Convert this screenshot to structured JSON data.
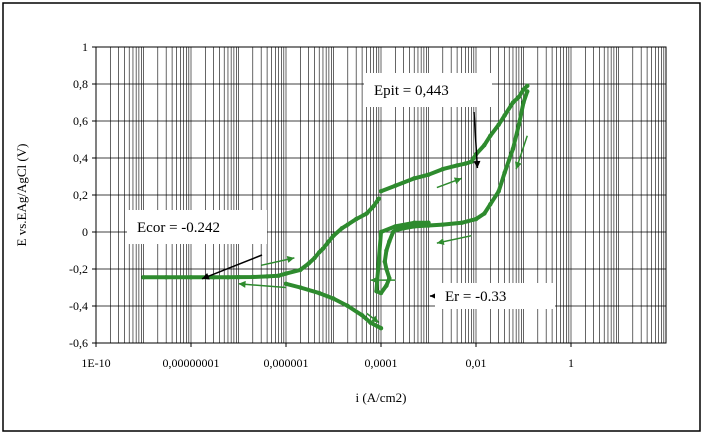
{
  "chart_data": {
    "type": "scatter",
    "title": "",
    "xlabel": "i (A/cm2)",
    "ylabel": "E vs.EAg/AgCl (V)",
    "x_scale": "log",
    "xlim": [
      1e-10,
      100
    ],
    "ylim": [
      -0.6,
      1
    ],
    "x_ticks": [
      {
        "value": 1e-10,
        "label": "1E-10"
      },
      {
        "value": 1e-08,
        "label": "0,00000001"
      },
      {
        "value": 1e-06,
        "label": "0,000001"
      },
      {
        "value": 0.0001,
        "label": "0,0001"
      },
      {
        "value": 0.01,
        "label": "0,01"
      },
      {
        "value": 1,
        "label": "1"
      }
    ],
    "y_ticks": [
      {
        "value": 1,
        "label": "1"
      },
      {
        "value": 0.8,
        "label": "0,8"
      },
      {
        "value": 0.6,
        "label": "0,6"
      },
      {
        "value": 0.4,
        "label": "0,4"
      },
      {
        "value": 0.2,
        "label": "0,2"
      },
      {
        "value": 0,
        "label": "0"
      },
      {
        "value": -0.2,
        "label": "-0,2"
      },
      {
        "value": -0.4,
        "label": "-0,4"
      },
      {
        "value": -0.6,
        "label": "-0,6"
      }
    ],
    "grid": {
      "horizontal": true,
      "vertical_minor_log": true
    },
    "legend": "none",
    "series_color": "#2e8b2e",
    "series": [
      {
        "x": [
          1e-09,
          3e-09,
          1e-08,
          3e-08,
          6e-08,
          1e-07,
          2e-07,
          4e-07,
          7e-07,
          1e-06,
          2e-06,
          3e-06,
          4e-06,
          5e-06,
          6e-06,
          8e-06,
          1e-05,
          1.5e-05,
          2e-05,
          3e-05,
          5e-05,
          7e-05,
          9e-05
        ],
        "y": [
          -0.245,
          -0.245,
          -0.245,
          -0.245,
          -0.245,
          -0.244,
          -0.243,
          -0.24,
          -0.236,
          -0.225,
          -0.205,
          -0.17,
          -0.14,
          -0.11,
          -0.09,
          -0.05,
          -0.02,
          0.02,
          0.04,
          0.07,
          0.1,
          0.14,
          0.18
        ]
      },
      {
        "x": [
          0.0001,
          0.0002,
          0.0005,
          0.001,
          0.002,
          0.004,
          0.006,
          0.008,
          0.01,
          0.015,
          0.02,
          0.03,
          0.04,
          0.06,
          0.08,
          0.1,
          0.12
        ],
        "y": [
          0.22,
          0.25,
          0.29,
          0.31,
          0.34,
          0.36,
          0.37,
          0.38,
          0.42,
          0.47,
          0.52,
          0.58,
          0.63,
          0.7,
          0.73,
          0.77,
          0.79
        ]
      },
      {
        "x": [
          0.12,
          0.1,
          0.08,
          0.06,
          0.04,
          0.03,
          0.02,
          0.015,
          0.01,
          0.005,
          0.002,
          0.001,
          0.0005,
          0.0003,
          0.0002
        ],
        "y": [
          0.76,
          0.7,
          0.58,
          0.45,
          0.32,
          0.22,
          0.15,
          0.1,
          0.07,
          0.05,
          0.04,
          0.035,
          0.03,
          0.02,
          0.01
        ]
      },
      {
        "x": [
          0.00018,
          0.00015,
          0.00013,
          0.00012,
          0.00013,
          0.00015,
          0.00013,
          0.0001,
          8e-05,
          0.0001,
          0.0002,
          0.0005,
          0.001
        ],
        "y": [
          0.0,
          -0.05,
          -0.1,
          -0.16,
          -0.2,
          -0.25,
          -0.29,
          -0.33,
          -0.32,
          0.0,
          0.03,
          0.05,
          0.05
        ]
      },
      {
        "x": [
          1e-06,
          2e-06,
          5e-06,
          1e-05,
          2e-05,
          4e-05,
          6e-05,
          0.0001
        ],
        "y": [
          -0.28,
          -0.3,
          -0.33,
          -0.36,
          -0.4,
          -0.45,
          -0.49,
          -0.52
        ]
      }
    ],
    "annotations": [
      {
        "text": "Epit = 0,443",
        "x": 0.008,
        "y": 0.443
      },
      {
        "text": "Ecor = -0.242",
        "x": 6e-08,
        "y": -0.242
      },
      {
        "text": "Er = -0.33",
        "x": 0.00025,
        "y": -0.33
      }
    ]
  }
}
